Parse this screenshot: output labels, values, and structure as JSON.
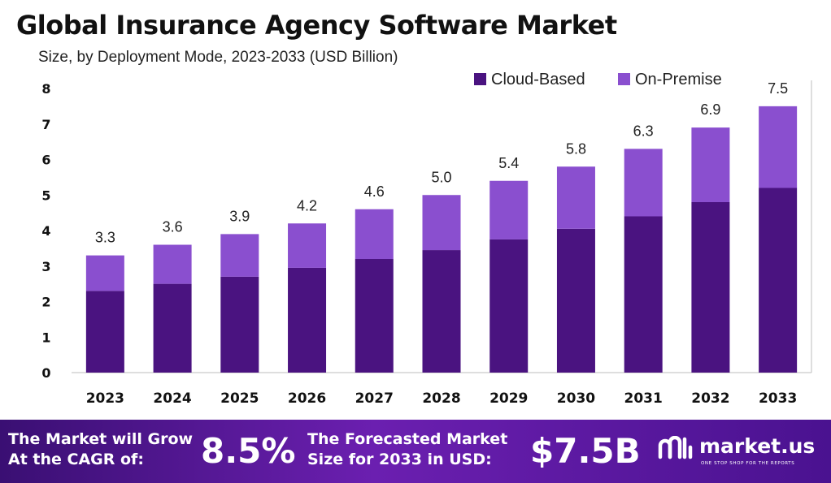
{
  "header": {
    "title": "Global Insurance Agency Software Market",
    "subtitle": "Size, by Deployment Mode, 2023-2033 (USD Billion)"
  },
  "chart_data": {
    "type": "bar",
    "stacked": true,
    "categories": [
      "2023",
      "2024",
      "2025",
      "2026",
      "2027",
      "2028",
      "2029",
      "2030",
      "2031",
      "2032",
      "2033"
    ],
    "series": [
      {
        "name": "Cloud-Based",
        "color": "#4a1380",
        "values": [
          2.3,
          2.5,
          2.7,
          2.95,
          3.2,
          3.45,
          3.75,
          4.05,
          4.4,
          4.8,
          5.2
        ]
      },
      {
        "name": "On-Premise",
        "color": "#8a4fcf",
        "values": [
          1.0,
          1.1,
          1.2,
          1.25,
          1.4,
          1.55,
          1.65,
          1.75,
          1.9,
          2.1,
          2.3
        ]
      }
    ],
    "totals": [
      3.3,
      3.6,
      3.9,
      4.2,
      4.6,
      5.0,
      5.4,
      5.8,
      6.3,
      6.9,
      7.5
    ],
    "total_labels": [
      "3.3",
      "3.6",
      "3.9",
      "4.2",
      "4.6",
      "5.0",
      "5.4",
      "5.8",
      "6.3",
      "6.9",
      "7.5"
    ],
    "ylim": [
      0,
      8
    ],
    "yticks": [
      "0",
      "1",
      "2",
      "3",
      "4",
      "5",
      "6",
      "7",
      "8"
    ],
    "xlabel": "",
    "ylabel": "",
    "grid": false,
    "legend_position": "top-right"
  },
  "footer": {
    "cagr_label_line1": "The Market will Grow",
    "cagr_label_line2": "At the CAGR of:",
    "cagr_value": "8.5%",
    "forecast_label_line1": "The Forecasted Market",
    "forecast_label_line2": "Size for 2033 in USD:",
    "forecast_value": "$7.5B",
    "brand_name": "market.us",
    "brand_tagline": "ONE STOP SHOP FOR THE REPORTS"
  }
}
